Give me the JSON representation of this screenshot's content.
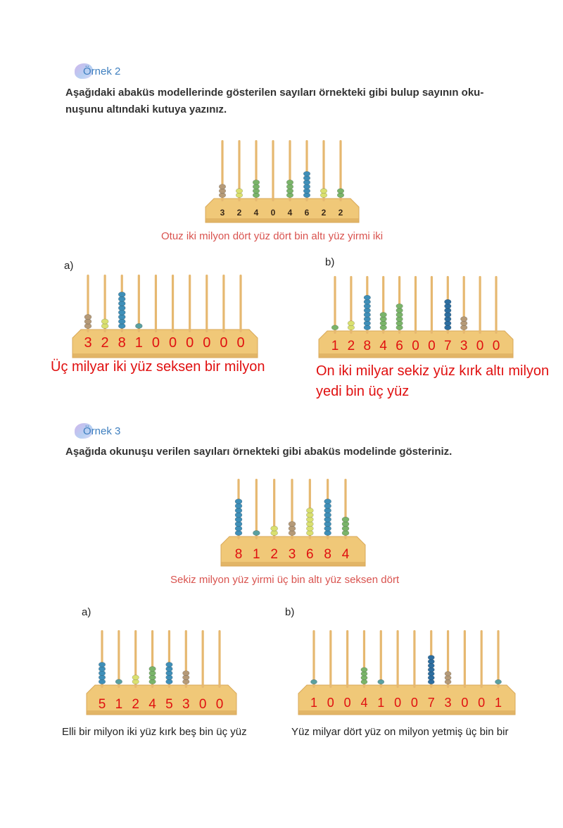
{
  "example2": {
    "title": "Örnek 2",
    "instruction_line1": "Aşağıdaki abaküs modellerinde gösterilen sayıları örnekteki gibi bulup sayının oku-",
    "instruction_line2": "nuşunu altındaki kutuya yazınız.",
    "model": {
      "digits": [
        "3",
        "2",
        "4",
        "0",
        "4",
        "6",
        "2",
        "2"
      ],
      "reading": "Otuz iki milyon dört yüz dört bin altı yüz yirmi iki"
    },
    "a": {
      "label": "a)",
      "digits": [
        "3",
        "2",
        "8",
        "1",
        "0",
        "0",
        "0",
        "0",
        "0",
        "0"
      ],
      "answer": "Üç milyar iki yüz seksen bir milyon"
    },
    "b": {
      "label": "b)",
      "digits": [
        "1",
        "2",
        "8",
        "4",
        "6",
        "0",
        "0",
        "7",
        "3",
        "0",
        "0"
      ],
      "answer_line1": "On iki milyar sekiz yüz kırk altı milyon",
      "answer_line2": "yedi bin üç yüz"
    }
  },
  "example3": {
    "title": "Örnek 3",
    "instruction": "Aşağıda okunuşu verilen sayıları örnekteki gibi abaküs modelinde gösteriniz.",
    "model": {
      "digits": [
        "8",
        "1",
        "2",
        "3",
        "6",
        "8",
        "4"
      ],
      "reading": "Sekiz milyon yüz yirmi üç bin altı yüz seksen dört"
    },
    "a": {
      "label": "a)",
      "digits": [
        "5",
        "1",
        "2",
        "4",
        "5",
        "3",
        "0",
        "0"
      ],
      "reading": "Elli bir milyon iki yüz kırk beş bin üç yüz"
    },
    "b": {
      "label": "b)",
      "digits": [
        "1",
        "0",
        "0",
        "4",
        "1",
        "0",
        "0",
        "7",
        "3",
        "0",
        "0",
        "1"
      ],
      "reading": "Yüz milyar dört yüz on milyon yetmiş üç bin bir"
    }
  },
  "colors": {
    "wood": "#f0c878",
    "wood_dark": "#d9a95a",
    "rod": "#e6b870",
    "digit_red": "#e01010",
    "digit_dark": "#3a2a1a",
    "bead_blue": "#3f8fb8",
    "bead_darkblue": "#2d6ea0",
    "bead_green": "#7ab46a",
    "bead_yellow": "#d9e070",
    "bead_brown": "#b59a78",
    "bead_teal": "#5aa0a0"
  }
}
